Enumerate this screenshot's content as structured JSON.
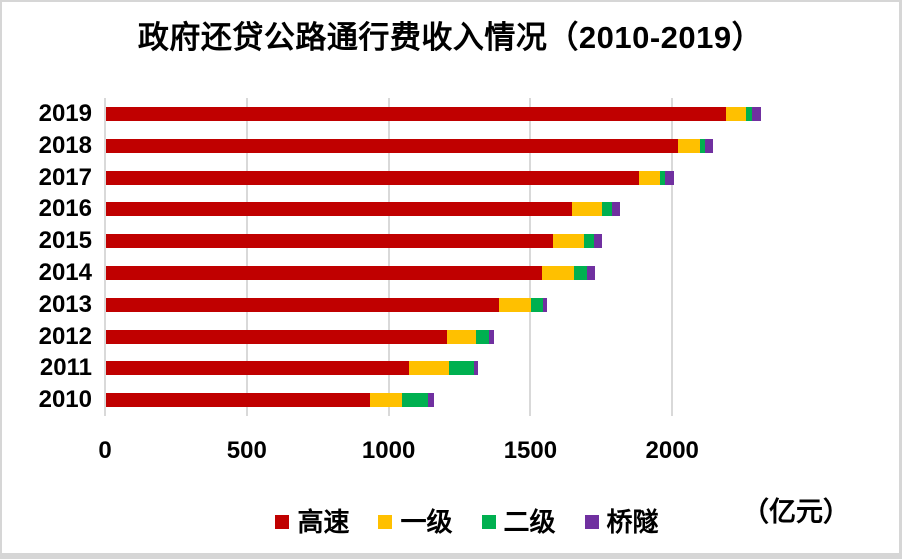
{
  "title": "政府还贷公路通行费收入情况（2010-2019）",
  "unit_label": "（亿元）",
  "colors": {
    "highway": "#C00000",
    "first_class": "#FFC000",
    "second_class": "#00B050",
    "bridge_tunnel": "#7030A0",
    "gridline": "#D9D9D9"
  },
  "chart_data": {
    "type": "bar",
    "orientation": "horizontal",
    "stacked": true,
    "title": "政府还贷公路通行费收入情况（2010-2019）",
    "ylabel": "",
    "xlabel": "",
    "unit": "亿元",
    "categories": [
      "2019",
      "2018",
      "2017",
      "2016",
      "2015",
      "2014",
      "2013",
      "2012",
      "2011",
      "2010"
    ],
    "series": [
      {
        "name": "高速",
        "color": "#C00000",
        "values": [
          2185,
          2016,
          1878,
          1643,
          1577,
          1536,
          1387,
          1201,
          1069,
          932
        ]
      },
      {
        "name": "一级",
        "color": "#FFC000",
        "values": [
          71,
          78,
          77,
          105,
          108,
          115,
          111,
          104,
          142,
          110
        ]
      },
      {
        "name": "二级",
        "color": "#00B050",
        "values": [
          21,
          19,
          17,
          35,
          37,
          46,
          44,
          47,
          85,
          92
        ]
      },
      {
        "name": "桥隧",
        "color": "#7030A0",
        "values": [
          34,
          29,
          32,
          30,
          26,
          29,
          13,
          15,
          17,
          21
        ]
      }
    ],
    "totals": [
      2311,
      2142,
      2004,
      1813,
      1748,
      1726,
      1555,
      1367,
      1313,
      1155
    ],
    "x_ticks": [
      0,
      500,
      1000,
      1500,
      2000
    ],
    "xlim": [
      0,
      2740
    ],
    "grid": "vertical",
    "legend_position": "bottom"
  },
  "legend": {
    "items": [
      {
        "label": "高速",
        "color": "#C00000"
      },
      {
        "label": "一级",
        "color": "#FFC000"
      },
      {
        "label": "二级",
        "color": "#00B050"
      },
      {
        "label": "桥隧",
        "color": "#7030A0"
      }
    ]
  }
}
